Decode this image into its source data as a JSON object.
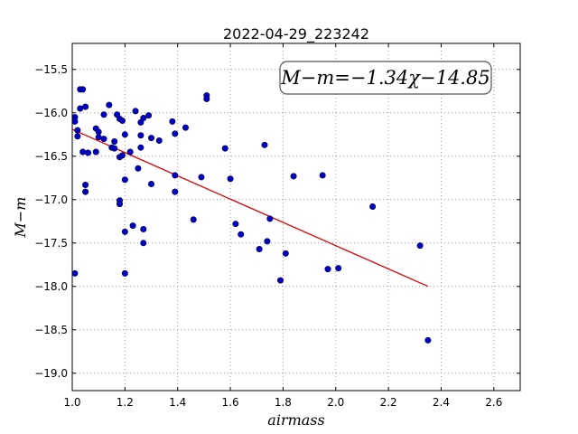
{
  "chart_data": {
    "type": "scatter",
    "title": "2022-04-29_223242",
    "xlabel": "airmass",
    "ylabel": "M−m",
    "annotation": "M−m=−1.34χ−14.85",
    "xlim": [
      1.0,
      2.7
    ],
    "ylim": [
      -19.2,
      -15.2
    ],
    "x_ticks": [
      1.0,
      1.2,
      1.4,
      1.6,
      1.8,
      2.0,
      2.2,
      2.4,
      2.6
    ],
    "x_tick_labels": [
      "1.0",
      "1.2",
      "1.4",
      "1.6",
      "1.8",
      "2.0",
      "2.2",
      "2.4",
      "2.6"
    ],
    "y_ticks": [
      -15.5,
      -16.0,
      -16.5,
      -17.0,
      -17.5,
      -18.0,
      -18.5,
      -19.0
    ],
    "y_tick_labels": [
      "−15.5",
      "−16.0",
      "−16.5",
      "−17.0",
      "−17.5",
      "−18.0",
      "−18.5",
      "−19.0"
    ],
    "grid": true,
    "colors": {
      "points": "#0000cc",
      "fit": "#dd0000"
    },
    "points": [
      [
        1.01,
        -16.05
      ],
      [
        1.01,
        -16.1
      ],
      [
        1.01,
        -17.85
      ],
      [
        1.02,
        -16.27
      ],
      [
        1.02,
        -16.2
      ],
      [
        1.03,
        -15.73
      ],
      [
        1.03,
        -15.95
      ],
      [
        1.04,
        -15.73
      ],
      [
        1.04,
        -16.45
      ],
      [
        1.05,
        -16.91
      ],
      [
        1.05,
        -16.83
      ],
      [
        1.05,
        -15.93
      ],
      [
        1.06,
        -16.46
      ],
      [
        1.09,
        -16.45
      ],
      [
        1.09,
        -16.18
      ],
      [
        1.1,
        -16.22
      ],
      [
        1.1,
        -16.28
      ],
      [
        1.12,
        -16.3
      ],
      [
        1.12,
        -16.02
      ],
      [
        1.14,
        -15.91
      ],
      [
        1.15,
        -16.4
      ],
      [
        1.16,
        -16.41
      ],
      [
        1.16,
        -16.33
      ],
      [
        1.17,
        -16.02
      ],
      [
        1.18,
        -16.07
      ],
      [
        1.18,
        -17.01
      ],
      [
        1.18,
        -17.05
      ],
      [
        1.18,
        -16.51
      ],
      [
        1.19,
        -16.09
      ],
      [
        1.19,
        -16.49
      ],
      [
        1.2,
        -16.25
      ],
      [
        1.2,
        -16.77
      ],
      [
        1.2,
        -17.37
      ],
      [
        1.2,
        -17.85
      ],
      [
        1.22,
        -16.45
      ],
      [
        1.23,
        -17.3
      ],
      [
        1.24,
        -15.98
      ],
      [
        1.25,
        -16.64
      ],
      [
        1.26,
        -16.11
      ],
      [
        1.26,
        -16.26
      ],
      [
        1.26,
        -16.4
      ],
      [
        1.27,
        -16.06
      ],
      [
        1.27,
        -17.34
      ],
      [
        1.27,
        -17.5
      ],
      [
        1.29,
        -16.03
      ],
      [
        1.3,
        -16.29
      ],
      [
        1.3,
        -16.82
      ],
      [
        1.33,
        -16.32
      ],
      [
        1.38,
        -16.1
      ],
      [
        1.39,
        -16.24
      ],
      [
        1.39,
        -16.72
      ],
      [
        1.39,
        -16.91
      ],
      [
        1.43,
        -16.17
      ],
      [
        1.46,
        -17.23
      ],
      [
        1.49,
        -16.74
      ],
      [
        1.51,
        -15.8
      ],
      [
        1.51,
        -15.84
      ],
      [
        1.58,
        -16.41
      ],
      [
        1.6,
        -16.76
      ],
      [
        1.62,
        -17.28
      ],
      [
        1.64,
        -17.4
      ],
      [
        1.71,
        -17.57
      ],
      [
        1.73,
        -16.37
      ],
      [
        1.74,
        -17.48
      ],
      [
        1.75,
        -17.22
      ],
      [
        1.79,
        -17.93
      ],
      [
        1.81,
        -17.62
      ],
      [
        1.84,
        -16.73
      ],
      [
        1.95,
        -16.72
      ],
      [
        1.97,
        -17.8
      ],
      [
        2.01,
        -17.79
      ],
      [
        2.14,
        -17.08
      ],
      [
        2.32,
        -17.53
      ],
      [
        2.35,
        -18.62
      ]
    ],
    "fit": {
      "slope": -1.34,
      "intercept": -14.85,
      "x_range": [
        1.0,
        2.35
      ]
    }
  }
}
